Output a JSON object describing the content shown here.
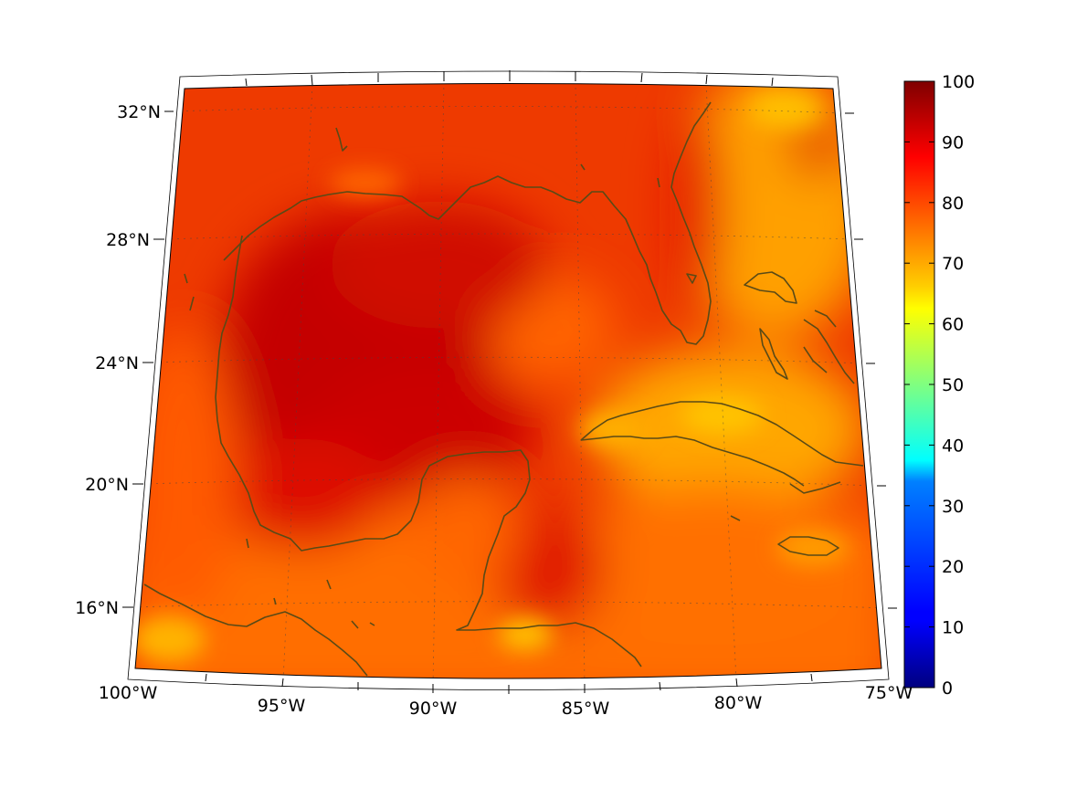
{
  "map": {
    "lon_labels": [
      "100°W",
      "95°W",
      "90°W",
      "85°W",
      "80°W",
      "75°W"
    ],
    "lat_labels": [
      "32°N",
      "28°N",
      "24°N",
      "20°N",
      "16°N"
    ],
    "frame_color": "#000000",
    "coastline_color": "#5a4a16",
    "field_colors": {
      "deep_red": "#bf0000",
      "red": "#e62000",
      "red_orange": "#f04a00",
      "orange": "#ff7a00",
      "yellow_orange": "#ffb000"
    }
  },
  "colorbar": {
    "colormap": "jet",
    "range": [
      0,
      100
    ],
    "tick_labels": [
      "100",
      "90",
      "80",
      "70",
      "60",
      "50",
      "40",
      "30",
      "20",
      "10",
      "0"
    ]
  }
}
